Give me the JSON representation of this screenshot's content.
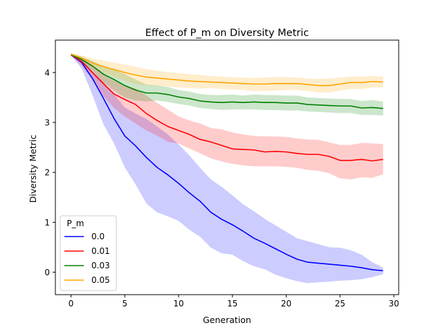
{
  "chart_data": {
    "type": "line",
    "title": "Effect of P_m on Diversity Metric",
    "xlabel": "Generation",
    "ylabel": "Diversity Metric",
    "xlim": [
      -1.45,
      30.45
    ],
    "ylim": [
      -0.45,
      4.65
    ],
    "xticks": [
      0,
      5,
      10,
      15,
      20,
      25,
      30
    ],
    "yticks": [
      0,
      1,
      2,
      3,
      4
    ],
    "grid": false,
    "legend": {
      "title": "P_m",
      "position": "lower-left"
    },
    "x": [
      0,
      1,
      2,
      3,
      4,
      5,
      6,
      7,
      8,
      9,
      10,
      11,
      12,
      13,
      14,
      15,
      16,
      17,
      18,
      19,
      20,
      21,
      22,
      23,
      24,
      25,
      26,
      27,
      28,
      29
    ],
    "series": [
      {
        "name": "0.0",
        "color": "#0000ff",
        "values": [
          4.36,
          4.2,
          3.88,
          3.49,
          3.08,
          2.73,
          2.53,
          2.3,
          2.1,
          1.95,
          1.78,
          1.59,
          1.42,
          1.2,
          1.06,
          0.95,
          0.82,
          0.68,
          0.58,
          0.47,
          0.36,
          0.26,
          0.2,
          0.18,
          0.16,
          0.14,
          0.12,
          0.09,
          0.05,
          0.03
        ],
        "lower": [
          4.34,
          4.08,
          3.55,
          2.97,
          2.58,
          2.1,
          1.76,
          1.38,
          1.2,
          1.12,
          1.03,
          0.85,
          0.71,
          0.49,
          0.38,
          0.35,
          0.22,
          0.12,
          0.06,
          -0.05,
          -0.12,
          -0.18,
          -0.22,
          -0.2,
          -0.19,
          -0.17,
          -0.16,
          -0.14,
          -0.1,
          -0.04
        ],
        "upper": [
          4.38,
          4.28,
          4.02,
          3.82,
          3.56,
          3.3,
          3.18,
          3.07,
          2.92,
          2.76,
          2.56,
          2.34,
          2.09,
          1.86,
          1.71,
          1.54,
          1.36,
          1.22,
          1.07,
          0.94,
          0.81,
          0.68,
          0.62,
          0.56,
          0.5,
          0.49,
          0.44,
          0.35,
          0.2,
          0.09
        ]
      },
      {
        "name": "0.01",
        "color": "#ff0000",
        "values": [
          4.36,
          4.22,
          4.0,
          3.78,
          3.57,
          3.46,
          3.36,
          3.18,
          3.04,
          2.92,
          2.84,
          2.76,
          2.66,
          2.61,
          2.54,
          2.47,
          2.46,
          2.45,
          2.41,
          2.42,
          2.41,
          2.38,
          2.36,
          2.36,
          2.32,
          2.24,
          2.24,
          2.26,
          2.23,
          2.26
        ],
        "lower": [
          4.34,
          4.14,
          3.85,
          3.53,
          3.29,
          3.12,
          2.98,
          2.84,
          2.74,
          2.61,
          2.58,
          2.48,
          2.38,
          2.28,
          2.22,
          2.17,
          2.14,
          2.12,
          2.12,
          2.12,
          2.11,
          2.09,
          2.05,
          2.03,
          1.98,
          1.88,
          1.86,
          1.9,
          1.89,
          1.96
        ],
        "upper": [
          4.38,
          4.3,
          4.14,
          3.96,
          3.83,
          3.74,
          3.68,
          3.54,
          3.39,
          3.26,
          3.12,
          3.04,
          2.98,
          2.89,
          2.86,
          2.8,
          2.76,
          2.73,
          2.72,
          2.72,
          2.71,
          2.68,
          2.66,
          2.65,
          2.6,
          2.55,
          2.55,
          2.59,
          2.58,
          2.57
        ]
      },
      {
        "name": "0.03",
        "color": "#008000",
        "values": [
          4.36,
          4.26,
          4.13,
          3.97,
          3.86,
          3.74,
          3.65,
          3.59,
          3.59,
          3.56,
          3.51,
          3.48,
          3.43,
          3.41,
          3.4,
          3.41,
          3.4,
          3.41,
          3.4,
          3.4,
          3.39,
          3.39,
          3.36,
          3.35,
          3.34,
          3.33,
          3.33,
          3.29,
          3.3,
          3.28
        ],
        "lower": [
          4.34,
          4.2,
          4.03,
          3.81,
          3.64,
          3.5,
          3.44,
          3.42,
          3.44,
          3.41,
          3.37,
          3.34,
          3.29,
          3.27,
          3.25,
          3.26,
          3.26,
          3.26,
          3.25,
          3.25,
          3.24,
          3.24,
          3.22,
          3.21,
          3.2,
          3.19,
          3.19,
          3.15,
          3.15,
          3.14
        ],
        "upper": [
          4.38,
          4.32,
          4.23,
          4.13,
          4.06,
          3.97,
          3.86,
          3.76,
          3.74,
          3.71,
          3.65,
          3.62,
          3.57,
          3.55,
          3.55,
          3.56,
          3.54,
          3.56,
          3.55,
          3.55,
          3.54,
          3.54,
          3.5,
          3.49,
          3.48,
          3.47,
          3.47,
          3.43,
          3.45,
          3.42
        ]
      },
      {
        "name": "0.05",
        "color": "#ffa500",
        "values": [
          4.37,
          4.29,
          4.19,
          4.12,
          4.06,
          4.0,
          3.95,
          3.91,
          3.89,
          3.87,
          3.85,
          3.83,
          3.82,
          3.81,
          3.8,
          3.79,
          3.78,
          3.77,
          3.77,
          3.78,
          3.78,
          3.78,
          3.76,
          3.74,
          3.74,
          3.77,
          3.8,
          3.8,
          3.82,
          3.81
        ],
        "lower": [
          4.35,
          4.24,
          4.1,
          4.0,
          3.92,
          3.84,
          3.77,
          3.74,
          3.73,
          3.72,
          3.7,
          3.69,
          3.68,
          3.69,
          3.67,
          3.66,
          3.65,
          3.63,
          3.63,
          3.64,
          3.65,
          3.65,
          3.63,
          3.6,
          3.6,
          3.64,
          3.67,
          3.67,
          3.7,
          3.7
        ],
        "upper": [
          4.39,
          4.34,
          4.28,
          4.24,
          4.2,
          4.16,
          4.12,
          4.07,
          4.04,
          4.01,
          3.99,
          3.97,
          3.95,
          3.93,
          3.92,
          3.91,
          3.9,
          3.89,
          3.9,
          3.91,
          3.91,
          3.9,
          3.88,
          3.87,
          3.88,
          3.9,
          3.92,
          3.92,
          3.93,
          3.92
        ]
      }
    ]
  }
}
